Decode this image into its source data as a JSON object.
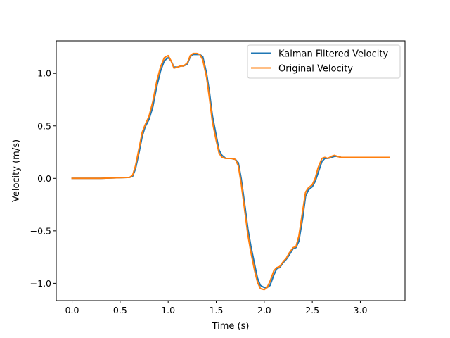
{
  "chart_data": {
    "type": "line",
    "title": "",
    "xlabel": "Time (s)",
    "ylabel": "Velocity (m/s)",
    "xlim": [
      -0.165,
      3.465
    ],
    "ylim": [
      -1.165,
      1.31
    ],
    "xticks": [
      0.0,
      0.5,
      1.0,
      1.5,
      2.0,
      2.5,
      3.0
    ],
    "xtick_labels": [
      "0.0",
      "0.5",
      "1.0",
      "1.5",
      "2.0",
      "2.5",
      "3.0"
    ],
    "yticks": [
      -1.0,
      -0.5,
      0.0,
      0.5,
      1.0
    ],
    "ytick_labels": [
      "−1.0",
      "−0.5",
      "0.0",
      "0.5",
      "1.0"
    ],
    "grid": false,
    "legend_position": "top-right",
    "series": [
      {
        "name": "Kalman Filtered Velocity",
        "color": "#1f77b4",
        "x": [
          0.0,
          0.3,
          0.6,
          0.63,
          0.66,
          0.7,
          0.73,
          0.76,
          0.8,
          0.84,
          0.88,
          0.92,
          0.96,
          1.0,
          1.03,
          1.06,
          1.1,
          1.13,
          1.16,
          1.2,
          1.23,
          1.26,
          1.3,
          1.33,
          1.36,
          1.4,
          1.43,
          1.46,
          1.5,
          1.53,
          1.56,
          1.6,
          1.63,
          1.66,
          1.7,
          1.73,
          1.76,
          1.8,
          1.83,
          1.86,
          1.9,
          1.93,
          1.96,
          2.0,
          2.03,
          2.06,
          2.1,
          2.13,
          2.16,
          2.2,
          2.23,
          2.26,
          2.3,
          2.33,
          2.36,
          2.4,
          2.43,
          2.46,
          2.5,
          2.53,
          2.56,
          2.6,
          2.63,
          2.66,
          2.7,
          2.73,
          2.76,
          2.8,
          2.85,
          2.9,
          2.95,
          3.0,
          3.05,
          3.1,
          3.2,
          3.3
        ],
        "y": [
          0.0,
          0.0,
          0.01,
          0.02,
          0.09,
          0.26,
          0.4,
          0.49,
          0.56,
          0.68,
          0.87,
          1.02,
          1.12,
          1.15,
          1.12,
          1.06,
          1.06,
          1.07,
          1.07,
          1.09,
          1.16,
          1.18,
          1.18,
          1.18,
          1.16,
          1.0,
          0.82,
          0.6,
          0.41,
          0.27,
          0.22,
          0.19,
          0.19,
          0.19,
          0.18,
          0.15,
          0.0,
          -0.27,
          -0.48,
          -0.64,
          -0.82,
          -0.95,
          -1.02,
          -1.04,
          -1.04,
          -1.02,
          -0.92,
          -0.86,
          -0.85,
          -0.8,
          -0.77,
          -0.73,
          -0.67,
          -0.66,
          -0.6,
          -0.38,
          -0.17,
          -0.11,
          -0.08,
          -0.03,
          0.05,
          0.16,
          0.19,
          0.19,
          0.2,
          0.21,
          0.21,
          0.2,
          0.2,
          0.2,
          0.2,
          0.2,
          0.2,
          0.2,
          0.2,
          0.2
        ]
      },
      {
        "name": "Original Velocity",
        "color": "#ff7f0e",
        "x": [
          0.0,
          0.3,
          0.6,
          0.63,
          0.66,
          0.7,
          0.73,
          0.76,
          0.8,
          0.84,
          0.88,
          0.92,
          0.96,
          1.0,
          1.03,
          1.06,
          1.1,
          1.13,
          1.16,
          1.2,
          1.23,
          1.26,
          1.3,
          1.33,
          1.36,
          1.4,
          1.43,
          1.46,
          1.5,
          1.53,
          1.56,
          1.6,
          1.63,
          1.66,
          1.7,
          1.73,
          1.76,
          1.8,
          1.83,
          1.86,
          1.9,
          1.93,
          1.96,
          2.0,
          2.03,
          2.06,
          2.1,
          2.13,
          2.16,
          2.2,
          2.23,
          2.26,
          2.3,
          2.33,
          2.36,
          2.4,
          2.43,
          2.46,
          2.5,
          2.53,
          2.56,
          2.6,
          2.63,
          2.66,
          2.7,
          2.73,
          2.76,
          2.8,
          2.85,
          2.9,
          2.95,
          3.0,
          3.05,
          3.1,
          3.2,
          3.3
        ],
        "y": [
          0.0,
          0.0,
          0.01,
          0.03,
          0.12,
          0.3,
          0.44,
          0.51,
          0.59,
          0.73,
          0.92,
          1.06,
          1.15,
          1.17,
          1.12,
          1.05,
          1.06,
          1.07,
          1.07,
          1.1,
          1.17,
          1.19,
          1.19,
          1.18,
          1.13,
          0.96,
          0.76,
          0.54,
          0.36,
          0.24,
          0.2,
          0.19,
          0.19,
          0.19,
          0.18,
          0.12,
          -0.05,
          -0.33,
          -0.54,
          -0.7,
          -0.88,
          -0.99,
          -1.05,
          -1.06,
          -1.04,
          -0.98,
          -0.88,
          -0.85,
          -0.84,
          -0.79,
          -0.76,
          -0.71,
          -0.66,
          -0.65,
          -0.55,
          -0.31,
          -0.13,
          -0.09,
          -0.06,
          0.0,
          0.1,
          0.19,
          0.2,
          0.19,
          0.21,
          0.22,
          0.21,
          0.2,
          0.2,
          0.2,
          0.2,
          0.2,
          0.2,
          0.2,
          0.2,
          0.2
        ]
      }
    ]
  }
}
